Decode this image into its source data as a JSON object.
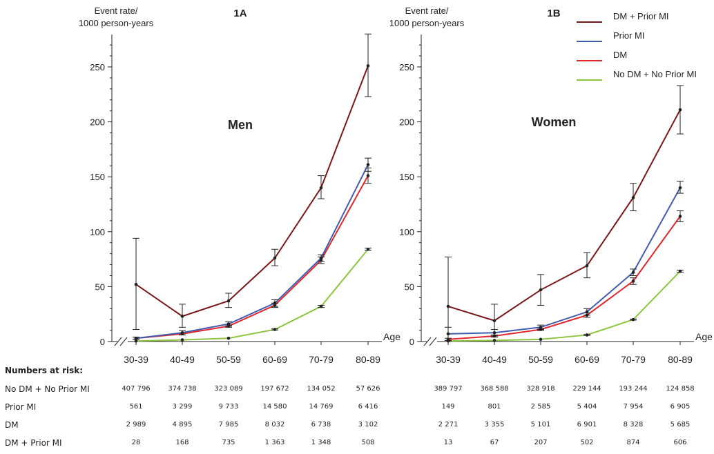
{
  "colors": {
    "DM + Prior MI": "#7b1416",
    "Prior MI": "#3f5cad",
    "DM": "#e5242b",
    "No DM + No Prior MI": "#8cc63f"
  },
  "legend": [
    "DM + Prior MI",
    "Prior MI",
    "DM",
    "No DM + No Prior MI"
  ],
  "chart_data": [
    {
      "panel": "1A",
      "subtitle": "Men",
      "type": "line",
      "ylabel": "Event rate/\n1000 person-years",
      "xlabel": "Age",
      "categories": [
        "30-39",
        "40-49",
        "50-59",
        "60-69",
        "70-79",
        "80-89"
      ],
      "ylim": [
        0,
        280
      ],
      "yticks": [
        0,
        50,
        100,
        150,
        200,
        250
      ],
      "series": [
        {
          "name": "DM + Prior MI",
          "values": [
            52,
            23,
            37,
            76,
            140,
            251
          ],
          "ci_low": [
            11,
            13,
            31,
            69,
            130,
            223
          ],
          "ci_high": [
            94,
            34,
            44,
            84,
            151,
            280
          ]
        },
        {
          "name": "Prior MI",
          "values": [
            3,
            8,
            16,
            35,
            76,
            161
          ],
          "ci_low": [
            2,
            6,
            14,
            32,
            73,
            155
          ],
          "ci_high": [
            4,
            10,
            18,
            38,
            79,
            167
          ]
        },
        {
          "name": "DM",
          "values": [
            3,
            7,
            14,
            33,
            74,
            151
          ],
          "ci_low": [
            2,
            6,
            13,
            31,
            71,
            144
          ],
          "ci_high": [
            4,
            8,
            15,
            35,
            77,
            158
          ]
        },
        {
          "name": "No DM + No Prior MI",
          "values": [
            0.5,
            1.5,
            3,
            11,
            32,
            84
          ],
          "ci_low": [
            0.3,
            1.3,
            2.8,
            10.5,
            31,
            83
          ],
          "ci_high": [
            0.7,
            1.7,
            3.2,
            11.5,
            33,
            85
          ]
        }
      ]
    },
    {
      "panel": "1B",
      "subtitle": "Women",
      "type": "line",
      "ylabel": "Event rate/\n1000 person-years",
      "xlabel": "Age",
      "categories": [
        "30-39",
        "40-49",
        "50-59",
        "60-69",
        "70-79",
        "80-89"
      ],
      "ylim": [
        0,
        280
      ],
      "yticks": [
        0,
        50,
        100,
        150,
        200,
        250
      ],
      "series": [
        {
          "name": "DM + Prior MI",
          "values": [
            32,
            19,
            47,
            69,
            131,
            211
          ],
          "ci_low": [
            0,
            5,
            33,
            58,
            119,
            189
          ],
          "ci_high": [
            77,
            34,
            61,
            81,
            144,
            233
          ]
        },
        {
          "name": "Prior MI",
          "values": [
            7,
            8,
            13,
            27,
            63,
            140
          ],
          "ci_low": [
            1,
            5,
            11,
            24,
            60,
            135
          ],
          "ci_high": [
            13,
            11,
            15,
            30,
            66,
            146
          ]
        },
        {
          "name": "DM",
          "values": [
            2,
            5,
            11,
            24,
            55,
            114
          ],
          "ci_low": [
            1,
            4,
            10,
            22,
            52,
            109
          ],
          "ci_high": [
            3,
            6,
            12,
            26,
            58,
            119
          ]
        },
        {
          "name": "No DM + No Prior MI",
          "values": [
            0.5,
            1,
            2,
            6,
            20,
            64
          ],
          "ci_low": [
            0.3,
            0.8,
            1.8,
            5.6,
            19.5,
            63
          ],
          "ci_high": [
            0.7,
            1.2,
            2.2,
            6.4,
            20.5,
            65
          ]
        }
      ]
    }
  ],
  "risk_table": {
    "title": "Numbers at risk:",
    "rows": [
      {
        "label": "No DM + No Prior MI",
        "men": [
          "407 796",
          "374 738",
          "323 089",
          "197 672",
          "134 052",
          "57 626"
        ],
        "women": [
          "389 797",
          "368 588",
          "328 918",
          "229 144",
          "193 244",
          "124 858"
        ]
      },
      {
        "label": "Prior MI",
        "men": [
          "561",
          "3 299",
          "9 733",
          "14 580",
          "14 769",
          "6 416"
        ],
        "women": [
          "149",
          "801",
          "2 585",
          "5 404",
          "7 954",
          "6 905"
        ]
      },
      {
        "label": "DM",
        "men": [
          "2 989",
          "4 895",
          "7 985",
          "8 032",
          "6 738",
          "3 102"
        ],
        "women": [
          "2 271",
          "3 355",
          "5 101",
          "6 901",
          "8 328",
          "5 685"
        ]
      },
      {
        "label": "DM + Prior MI",
        "men": [
          "28",
          "168",
          "735",
          "1 363",
          "1 348",
          "508"
        ],
        "women": [
          "13",
          "67",
          "207",
          "502",
          "874",
          "606"
        ]
      }
    ]
  }
}
